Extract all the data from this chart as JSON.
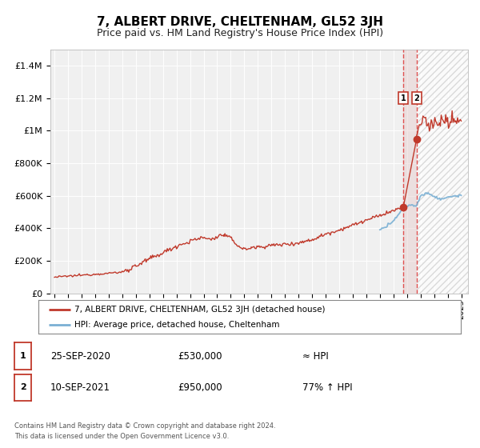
{
  "title": "7, ALBERT DRIVE, CHELTENHAM, GL52 3JH",
  "subtitle": "Price paid vs. HM Land Registry's House Price Index (HPI)",
  "title_fontsize": 11,
  "subtitle_fontsize": 9,
  "background_color": "#ffffff",
  "plot_bg_color": "#f0f0f0",
  "grid_color": "#ffffff",
  "ylabel_ticks": [
    "£0",
    "£200K",
    "£400K",
    "£600K",
    "£800K",
    "£1M",
    "£1.2M",
    "£1.4M"
  ],
  "ytick_values": [
    0,
    200000,
    400000,
    600000,
    800000,
    1000000,
    1200000,
    1400000
  ],
  "ylim": [
    0,
    1500000
  ],
  "xlim_start": 1994.7,
  "xlim_end": 2025.5,
  "hpi_line_color": "#7ab0d4",
  "price_line_color": "#c0392b",
  "marker_color": "#c0392b",
  "vline1_color": "#e05050",
  "vline2_color": "#e05050",
  "shade_color": "#e8d0d0",
  "hatch_color": "#d0d0d0",
  "label1": "1",
  "label2": "2",
  "annotation1_date": "25-SEP-2020",
  "annotation1_price": "£530,000",
  "annotation1_hpi": "≈ HPI",
  "annotation2_date": "10-SEP-2021",
  "annotation2_price": "£950,000",
  "annotation2_hpi": "77% ↑ HPI",
  "vline1_x": 2020.73,
  "vline2_x": 2021.71,
  "sale1_x": 2020.73,
  "sale1_y": 530000,
  "sale2_x": 2021.71,
  "sale2_y": 950000,
  "legend_label1": "7, ALBERT DRIVE, CHELTENHAM, GL52 3JH (detached house)",
  "legend_label2": "HPI: Average price, detached house, Cheltenham",
  "footer1": "Contains HM Land Registry data © Crown copyright and database right 2024.",
  "footer2": "This data is licensed under the Open Government Licence v3.0."
}
